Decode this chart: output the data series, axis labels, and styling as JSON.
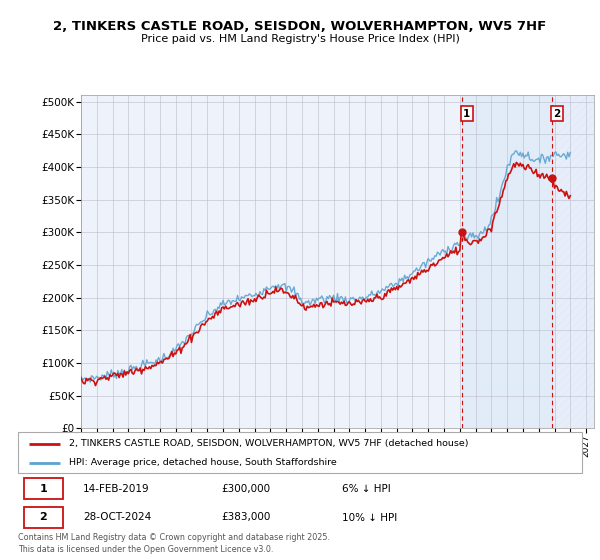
{
  "title": "2, TINKERS CASTLE ROAD, SEISDON, WOLVERHAMPTON, WV5 7HF",
  "subtitle": "Price paid vs. HM Land Registry's House Price Index (HPI)",
  "ylabel_ticks": [
    "£0",
    "£50K",
    "£100K",
    "£150K",
    "£200K",
    "£250K",
    "£300K",
    "£350K",
    "£400K",
    "£450K",
    "£500K"
  ],
  "ytick_values": [
    0,
    50000,
    100000,
    150000,
    200000,
    250000,
    300000,
    350000,
    400000,
    450000,
    500000
  ],
  "ylim": [
    0,
    510000
  ],
  "xlim_start": 1995.0,
  "xlim_end": 2027.5,
  "hpi_color": "#5ba3d0",
  "price_color": "#cc1111",
  "sale1_x": 2019.12,
  "sale1_y": 300000,
  "sale1_label": "1",
  "sale2_x": 2024.83,
  "sale2_y": 383000,
  "sale2_label": "2",
  "legend_line1": "2, TINKERS CASTLE ROAD, SEISDON, WOLVERHAMPTON, WV5 7HF (detached house)",
  "legend_line2": "HPI: Average price, detached house, South Staffordshire",
  "table_row1": [
    "1",
    "14-FEB-2019",
    "£300,000",
    "6% ↓ HPI"
  ],
  "table_row2": [
    "2",
    "28-OCT-2024",
    "£383,000",
    "10% ↓ HPI"
  ],
  "footnote": "Contains HM Land Registry data © Crown copyright and database right 2025.\nThis data is licensed under the Open Government Licence v3.0.",
  "plot_bg_color": "#eef2fb",
  "shade_color": "#ccdff5",
  "grid_color": "#bbbbcc"
}
